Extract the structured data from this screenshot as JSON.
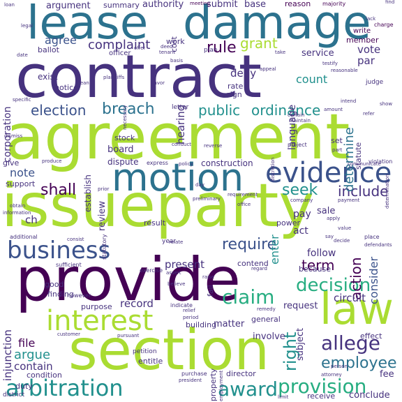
{
  "colors": {
    "dark_purple": "#440154",
    "indigo": "#46327e",
    "slate_blue": "#3b528b",
    "steel_blue": "#365c8d",
    "teal_blue": "#2c728e",
    "teal": "#21908d",
    "sea_green": "#27ad81",
    "green": "#5cc863",
    "lime": "#aadc32",
    "yellow": "#fde725"
  },
  "words": {
    "contract": "contract",
    "agreement": "agreement",
    "issueparty": "issueparty",
    "provide": "provide",
    "section": "section",
    "lease": "lease",
    "damage": "damage",
    "motion": "motion",
    "evidence": "evidence",
    "business": "business",
    "law": "law",
    "interest": "interest",
    "arbitration": "arbitration",
    "provision": "provision",
    "decision": "decision",
    "claim": "claim",
    "allege": "allege",
    "employee": "employee",
    "award": "award",
    "require": "require",
    "shall": "shall",
    "seek": "seek",
    "include": "include",
    "election": "election",
    "breach": "breach",
    "public": "public",
    "ordinance": "ordinance",
    "rule": "rule",
    "grant": "grant",
    "complaint": "complaint",
    "agree": "agree",
    "vote": "vote",
    "par": "par",
    "argument": "argument",
    "summary": "summary",
    "authority": "authority",
    "submit": "submit",
    "base": "base",
    "reason": "reason",
    "majority": "majority",
    "count": "count",
    "determine": "determine",
    "action": "action",
    "consider": "consider",
    "right": "right",
    "term": "term",
    "follow": "follow",
    "present": "present",
    "record": "record",
    "circuit": "circuit",
    "request": "request",
    "file": "file",
    "argue": "argue",
    "contain": "contain",
    "note": "note",
    "corporation": "corporation",
    "injunction": "injunction",
    "hearing": "hearing",
    "deny": "deny",
    "service": "service",
    "language": "language",
    "rate": "rate",
    "sign": "sign",
    "notice": "notice",
    "exist": "exist",
    "letter": "letter",
    "stock": "stock",
    "board": "board",
    "dispute": "dispute",
    "construction": "construction",
    "establish": "establish",
    "review": "review",
    "enter": "enter",
    "pay": "pay",
    "sale": "sale",
    "act": "act",
    "power": "power",
    "matter": "matter",
    "subject": "subject",
    "general": "general",
    "involve": "involve",
    "petition": "petition",
    "entitle": "entitle",
    "director": "director",
    "property": "property",
    "purpose": "purpose",
    "good": "good",
    "finding": "finding",
    "condition": "condition",
    "duty": "duty",
    "district": "district",
    "receive": "receive",
    "conclude": "conclude",
    "fee": "fee",
    "effect": "effect",
    "statute": "statute",
    "support": "support",
    "give": "give",
    "ch": "ch",
    "contend": "contend",
    "fail": "fail",
    "because": "because",
    "building": "building",
    "cost": "cost",
    "work": "work",
    "plan": "plan",
    "officer": "officer",
    "member": "member",
    "write": "write",
    "charge": "charge",
    "ballot": "ballot",
    "meeting": "meeting",
    "set": "set",
    "project": "project",
    "year": "year",
    "result": "result",
    "president": "president",
    "purchase": "purchase",
    "indicate": "indicate",
    "remedy": "remedy",
    "place": "place",
    "reasonable": "reasonable",
    "judge": "judge",
    "testify": "testify",
    "basis": "basis",
    "favor": "favor",
    "plaintiffs": "plaintiffs",
    "specific": "specific",
    "mean": "mean",
    "express": "express",
    "policy": "policy",
    "day": "day",
    "statutory": "statutory",
    "additional": "additional",
    "sufficient": "sufficient",
    "however": "however",
    "customer": "customer",
    "pursuant": "pursuant",
    "exercise": "exercise",
    "believe": "believe",
    "assert": "assert",
    "violation": "violation",
    "determination": "determination",
    "defendants": "defendants",
    "value": "value",
    "apply": "apply",
    "payment": "payment",
    "company": "company",
    "requirement": "requirement",
    "preliminary": "preliminary",
    "regard": "regard",
    "reverse": "reverse",
    "conduct": "conduct",
    "employment": "employment",
    "attorney": "attorney",
    "person": "person",
    "discretion": "discretion",
    "amount": "amount",
    "office": "office",
    "dismiss": "dismiss",
    "information": "information",
    "certain": "certain",
    "maintain": "maintain",
    "appeal": "appeal",
    "lack": "lack",
    "part": "part",
    "communicate": "communicate",
    "take": "take",
    "tenant": "tenant",
    "loan": "loan",
    "legal": "legal",
    "date": "date",
    "necessary": "necessary",
    "raise": "raise",
    "refer": "refer",
    "limit": "limit",
    "prior": "prior",
    "relief": "relief",
    "period": "period",
    "produce": "produce",
    "obtain": "obtain",
    "deed": "deed",
    "relate": "relate",
    "consist": "consist",
    "offer": "offer",
    "find": "find",
    "say": "say",
    "show": "show",
    "decide": "decide",
    "intend": "intend"
  }
}
